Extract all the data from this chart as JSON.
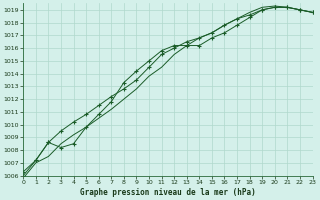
{
  "title": "Graphe pression niveau de la mer (hPa)",
  "background_color": "#d4f0ea",
  "plot_bg_color": "#d4f0ea",
  "grid_color": "#b0d8cc",
  "line_color": "#1a5c28",
  "xlim": [
    0,
    23
  ],
  "ylim": [
    1006,
    1019.5
  ],
  "xticks": [
    0,
    1,
    2,
    3,
    4,
    5,
    6,
    7,
    8,
    9,
    10,
    11,
    12,
    13,
    14,
    15,
    16,
    17,
    18,
    19,
    20,
    21,
    22,
    23
  ],
  "yticks": [
    1006,
    1007,
    1008,
    1009,
    1010,
    1011,
    1012,
    1013,
    1014,
    1015,
    1016,
    1017,
    1018,
    1019
  ],
  "series1": [
    1006.0,
    1007.2,
    1008.6,
    1008.2,
    1008.5,
    1009.8,
    1010.8,
    1011.8,
    1013.3,
    1014.2,
    1015.0,
    1015.8,
    1016.2,
    1016.2,
    1016.2,
    1016.8,
    1017.2,
    1017.8,
    1018.4,
    1019.0,
    1019.2,
    1019.2,
    1019.0,
    1018.8
  ],
  "series2": [
    1006.3,
    1007.2,
    1008.6,
    1009.5,
    1010.2,
    1010.8,
    1011.5,
    1012.2,
    1012.8,
    1013.5,
    1014.5,
    1015.5,
    1016.0,
    1016.5,
    1016.8,
    1017.2,
    1017.8,
    1018.3,
    1018.6,
    1019.0,
    1019.2,
    1019.2,
    1019.0,
    1018.8
  ],
  "series3": [
    1005.8,
    1007.0,
    1007.5,
    1008.5,
    1009.2,
    1009.8,
    1010.5,
    1011.2,
    1012.0,
    1012.8,
    1013.8,
    1014.5,
    1015.5,
    1016.2,
    1016.8,
    1017.2,
    1017.8,
    1018.3,
    1018.8,
    1019.2,
    1019.3,
    1019.2,
    1019.0,
    1018.8
  ]
}
